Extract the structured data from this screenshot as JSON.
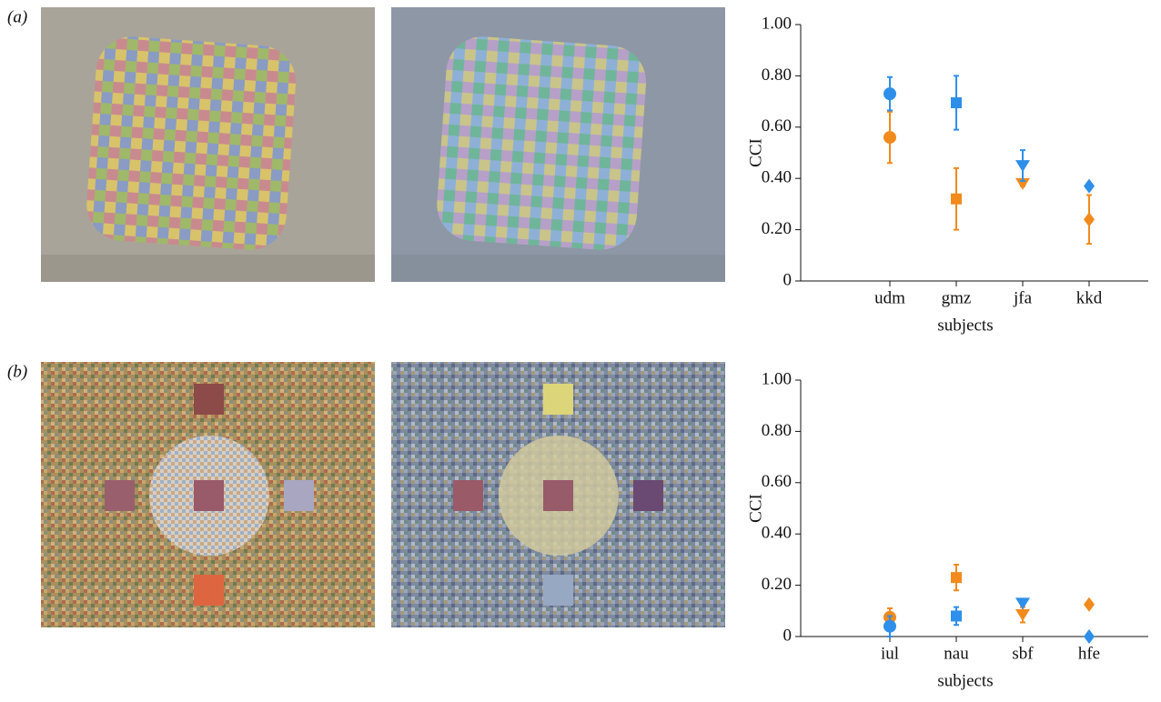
{
  "chart_data": [
    {
      "type": "scatter",
      "panel_label": "(a)",
      "categories": [
        "udm",
        "gmz",
        "jfa",
        "kkd"
      ],
      "markers": [
        "circle",
        "square",
        "triangle-down",
        "diamond"
      ],
      "series": [
        {
          "color": "#f28a1c",
          "values": [
            0.56,
            0.32,
            0.38,
            0.24
          ],
          "errors": [
            0.1,
            0.12,
            0.01,
            0.095
          ]
        },
        {
          "color": "#2e8fea",
          "values": [
            0.73,
            0.695,
            0.45,
            0.37
          ],
          "errors": [
            0.065,
            0.105,
            0.06,
            0
          ]
        }
      ],
      "ylim": [
        0,
        1
      ],
      "yticks": [
        0,
        {
          "value": 0.2,
          "label": "0.20"
        },
        {
          "value": 0.4,
          "label": "0.40"
        },
        {
          "value": 0.6,
          "label": "0.60"
        },
        {
          "value": 0.8,
          "label": "0.80"
        },
        {
          "value": 1,
          "label": "1.00"
        }
      ],
      "xlabel": "subjects",
      "ylabel": "CCI"
    },
    {
      "type": "scatter",
      "panel_label": "(b)",
      "categories": [
        "iul",
        "nau",
        "sbf",
        "hfe"
      ],
      "markers": [
        "circle",
        "square",
        "triangle-down",
        "diamond"
      ],
      "series": [
        {
          "color": "#f28a1c",
          "values": [
            0.075,
            0.23,
            0.085,
            0.125
          ],
          "errors": [
            0.035,
            0.05,
            0.03,
            0
          ]
        },
        {
          "color": "#2e8fea",
          "values": [
            0.04,
            0.08,
            0.13,
            0.0
          ],
          "errors": [
            0.04,
            0.035,
            0,
            0
          ]
        }
      ],
      "ylim": [
        0,
        1
      ],
      "yticks": [
        0,
        {
          "value": 0.2,
          "label": "0.20"
        },
        {
          "value": 0.4,
          "label": "0.40"
        },
        {
          "value": 0.6,
          "label": "0.60"
        },
        {
          "value": 0.8,
          "label": "0.80"
        },
        {
          "value": 1,
          "label": "1.00"
        }
      ],
      "xlabel": "subjects",
      "ylabel": "CCI"
    }
  ]
}
